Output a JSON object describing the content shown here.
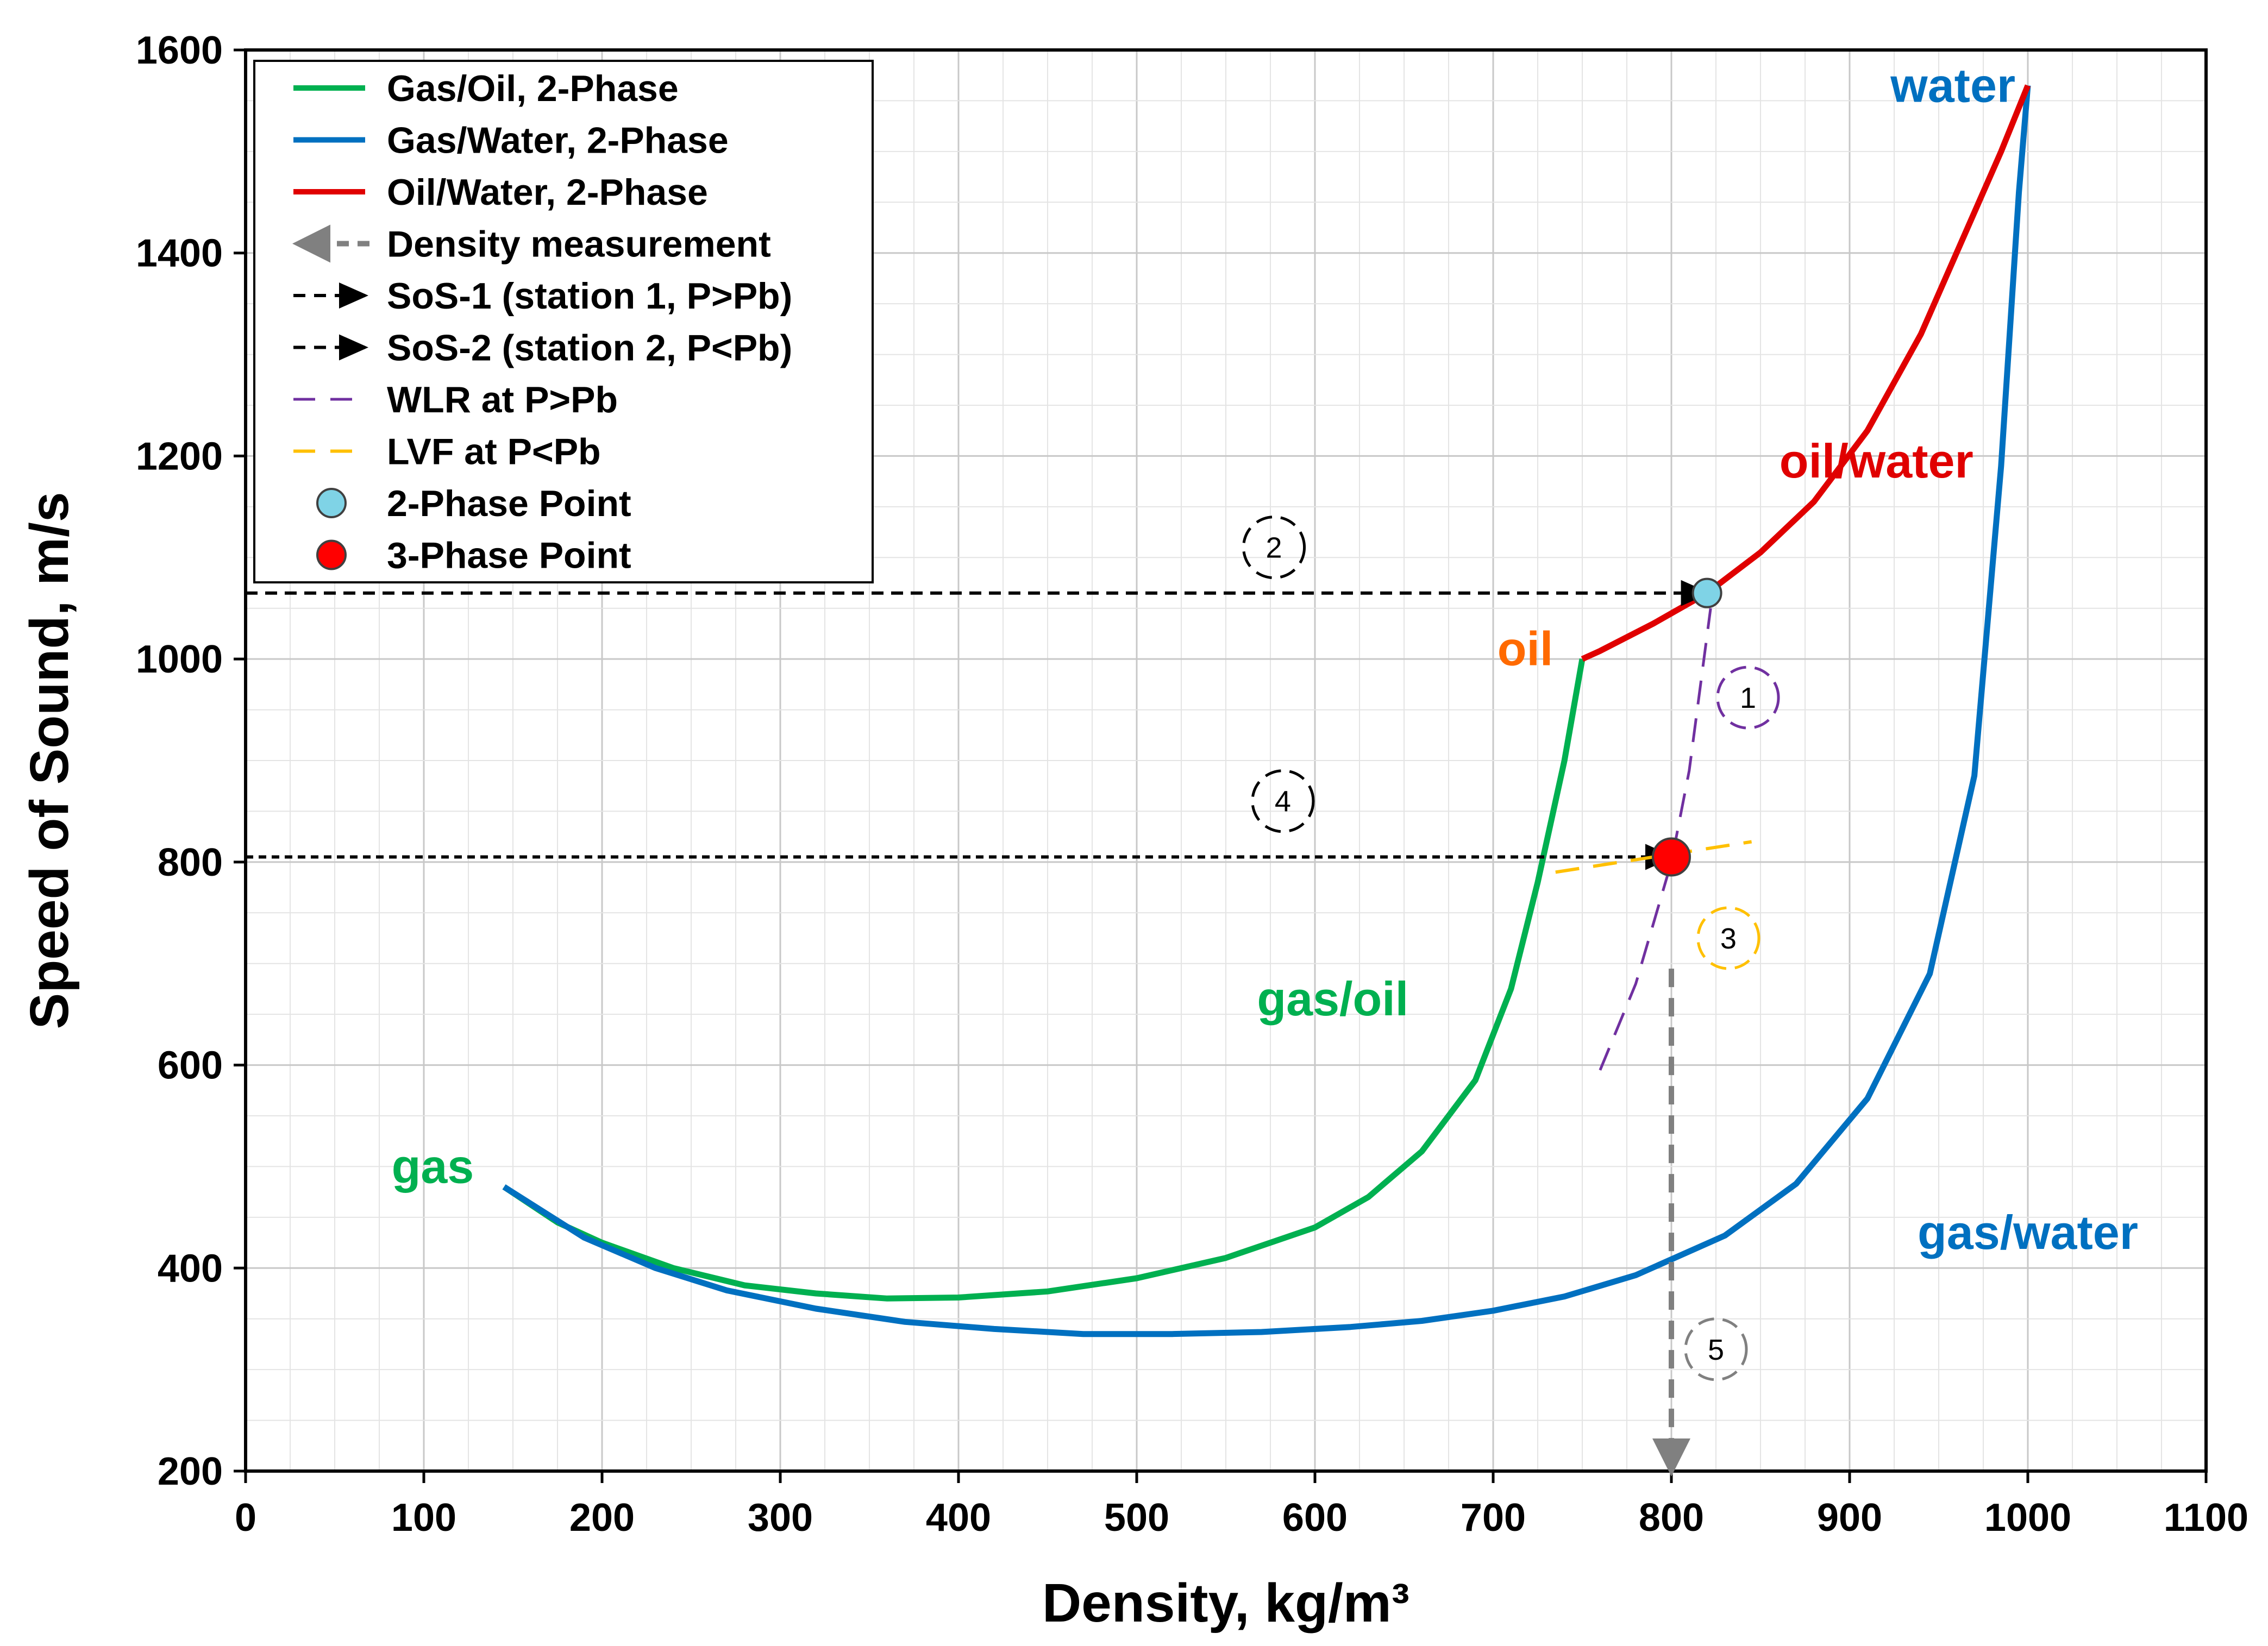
{
  "chart_data": {
    "type": "line",
    "xlabel": "Density, kg/m³",
    "ylabel": "Speed of Sound, m/s",
    "xlim": [
      0,
      1100
    ],
    "ylim": [
      200,
      1600
    ],
    "xticks": [
      0,
      100,
      200,
      300,
      400,
      500,
      600,
      700,
      800,
      900,
      1000,
      1100
    ],
    "yticks": [
      200,
      400,
      600,
      800,
      1000,
      1200,
      1400,
      1600
    ],
    "grid": true,
    "legend_position": "top-left",
    "colors": {
      "gas_oil": "#00B050",
      "gas_water": "#0070C0",
      "oil_water": "#E00000",
      "density": "#808080",
      "sos": "#000000",
      "wlr": "#7030A0",
      "lvf": "#FFC000",
      "point2": "#7FD3E6",
      "point3": "#FF0000",
      "oil_label": "#FF6A00"
    },
    "series": [
      {
        "name": "Gas/Oil, 2-Phase",
        "x": [
          145,
          175,
          200,
          240,
          280,
          320,
          360,
          400,
          450,
          500,
          550,
          600,
          630,
          660,
          690,
          710,
          725,
          740,
          750
        ],
        "y": [
          480,
          445,
          425,
          400,
          383,
          375,
          370,
          371,
          377,
          390,
          410,
          440,
          470,
          515,
          585,
          675,
          780,
          900,
          1000
        ]
      },
      {
        "name": "Gas/Water, 2-Phase",
        "x": [
          145,
          190,
          230,
          270,
          320,
          370,
          420,
          470,
          520,
          570,
          620,
          660,
          700,
          740,
          780,
          830,
          870,
          910,
          945,
          970,
          985,
          995,
          1000
        ],
        "y": [
          480,
          430,
          400,
          378,
          360,
          347,
          340,
          335,
          335,
          337,
          342,
          348,
          358,
          372,
          393,
          432,
          483,
          567,
          690,
          885,
          1190,
          1460,
          1565
        ]
      },
      {
        "name": "Oil/Water, 2-Phase",
        "x": [
          750,
          760,
          790,
          820,
          850,
          880,
          910,
          940,
          965,
          985,
          1000
        ],
        "y": [
          1000,
          1008,
          1035,
          1065,
          1105,
          1155,
          1225,
          1320,
          1420,
          1500,
          1565
        ]
      },
      {
        "name": "Density measurement",
        "x": [
          800,
          800
        ],
        "y": [
          695,
          200
        ]
      },
      {
        "name": "SoS-1 (station 1, P>Pb)",
        "x": [
          0,
          820
        ],
        "y": [
          1065,
          1065
        ]
      },
      {
        "name": "SoS-2 (station 2, P<Pb)",
        "x": [
          0,
          800
        ],
        "y": [
          805,
          805
        ]
      },
      {
        "name": "WLR at P>Pb",
        "x": [
          760,
          780,
          800,
          810,
          822
        ],
        "y": [
          595,
          680,
          800,
          890,
          1050
        ]
      },
      {
        "name": "LVF at P<Pb",
        "x": [
          735,
          845
        ],
        "y": [
          790,
          820
        ]
      }
    ],
    "points": [
      {
        "name": "2-Phase Point",
        "x": 820,
        "y": 1065
      },
      {
        "name": "3-Phase Point",
        "x": 800,
        "y": 805
      }
    ],
    "legend": [
      "Gas/Oil, 2-Phase",
      "Gas/Water, 2-Phase",
      "Oil/Water, 2-Phase",
      "Density measurement",
      "SoS-1 (station 1, P>Pb)",
      "SoS-2 (station 2, P<Pb)",
      "WLR at P>Pb",
      "LVF at P<Pb",
      "2-Phase Point",
      "3-Phase Point"
    ],
    "annotations": [
      {
        "text": "water",
        "x": 958,
        "y": 1565
      },
      {
        "text": "oil/water",
        "x": 915,
        "y": 1195
      },
      {
        "text": "oil",
        "x": 718,
        "y": 1010
      },
      {
        "text": "gas/oil",
        "x": 610,
        "y": 665
      },
      {
        "text": "gas",
        "x": 105,
        "y": 500
      },
      {
        "text": "gas/water",
        "x": 1000,
        "y": 435
      }
    ],
    "steps": [
      {
        "text": "1",
        "x": 843,
        "y": 962
      },
      {
        "text": "2",
        "x": 577,
        "y": 1110
      },
      {
        "text": "3",
        "x": 832,
        "y": 725
      },
      {
        "text": "4",
        "x": 582,
        "y": 860
      },
      {
        "text": "5",
        "x": 825,
        "y": 320
      }
    ]
  }
}
